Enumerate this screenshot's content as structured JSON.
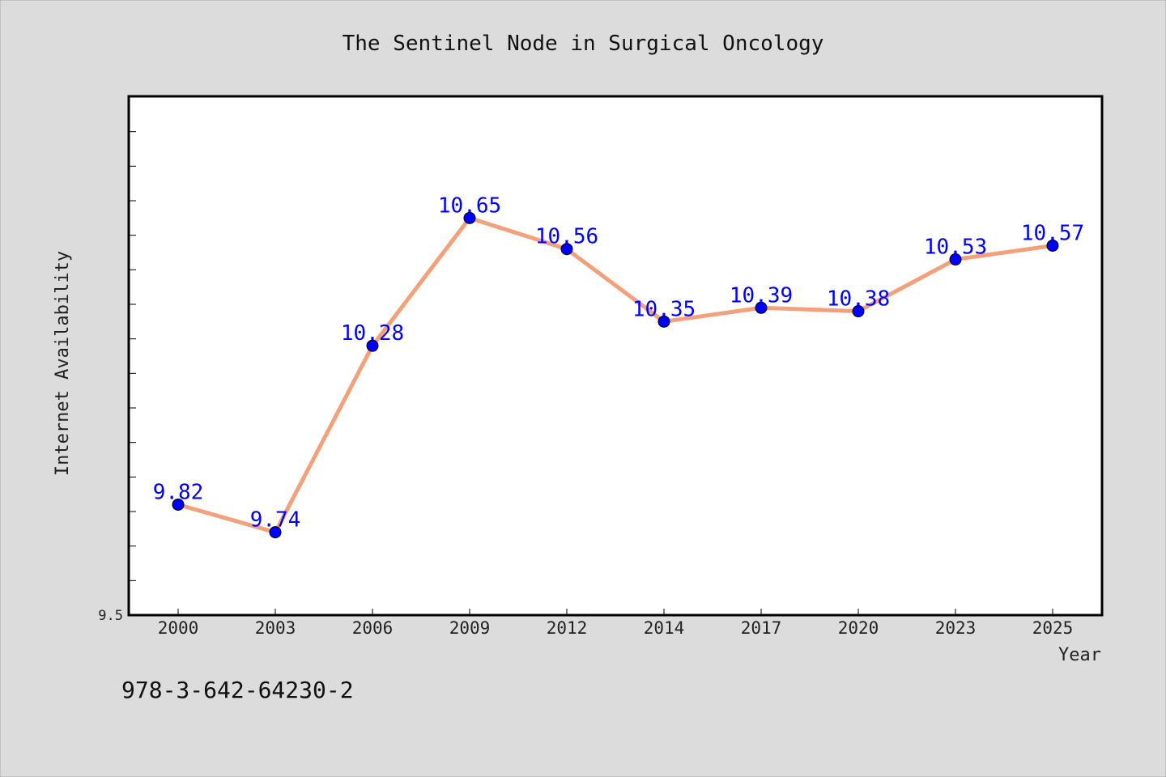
{
  "chart_data": {
    "type": "line",
    "title": "The Sentinel Node in Surgical Oncology",
    "xlabel": "Year",
    "ylabel": "Internet Availability",
    "categories": [
      "2000",
      "2003",
      "2006",
      "2009",
      "2012",
      "2014",
      "2017",
      "2020",
      "2023",
      "2025"
    ],
    "values": [
      9.82,
      9.74,
      10.28,
      10.65,
      10.56,
      10.35,
      10.39,
      10.38,
      10.53,
      10.57
    ],
    "data_labels": [
      "9.82",
      "9.74",
      "10.28",
      "10.65",
      "10.56",
      "10.35",
      "10.39",
      "10.38",
      "10.53",
      "10.57"
    ],
    "ylim": [
      9.5,
      11.0
    ],
    "y_tick_label": "9.5",
    "grid": false,
    "colors": {
      "line": "#f4a07a",
      "marker": "#0000ff",
      "label": "#0000ff"
    }
  },
  "footer": {
    "isbn": "978-3-642-64230-2"
  }
}
